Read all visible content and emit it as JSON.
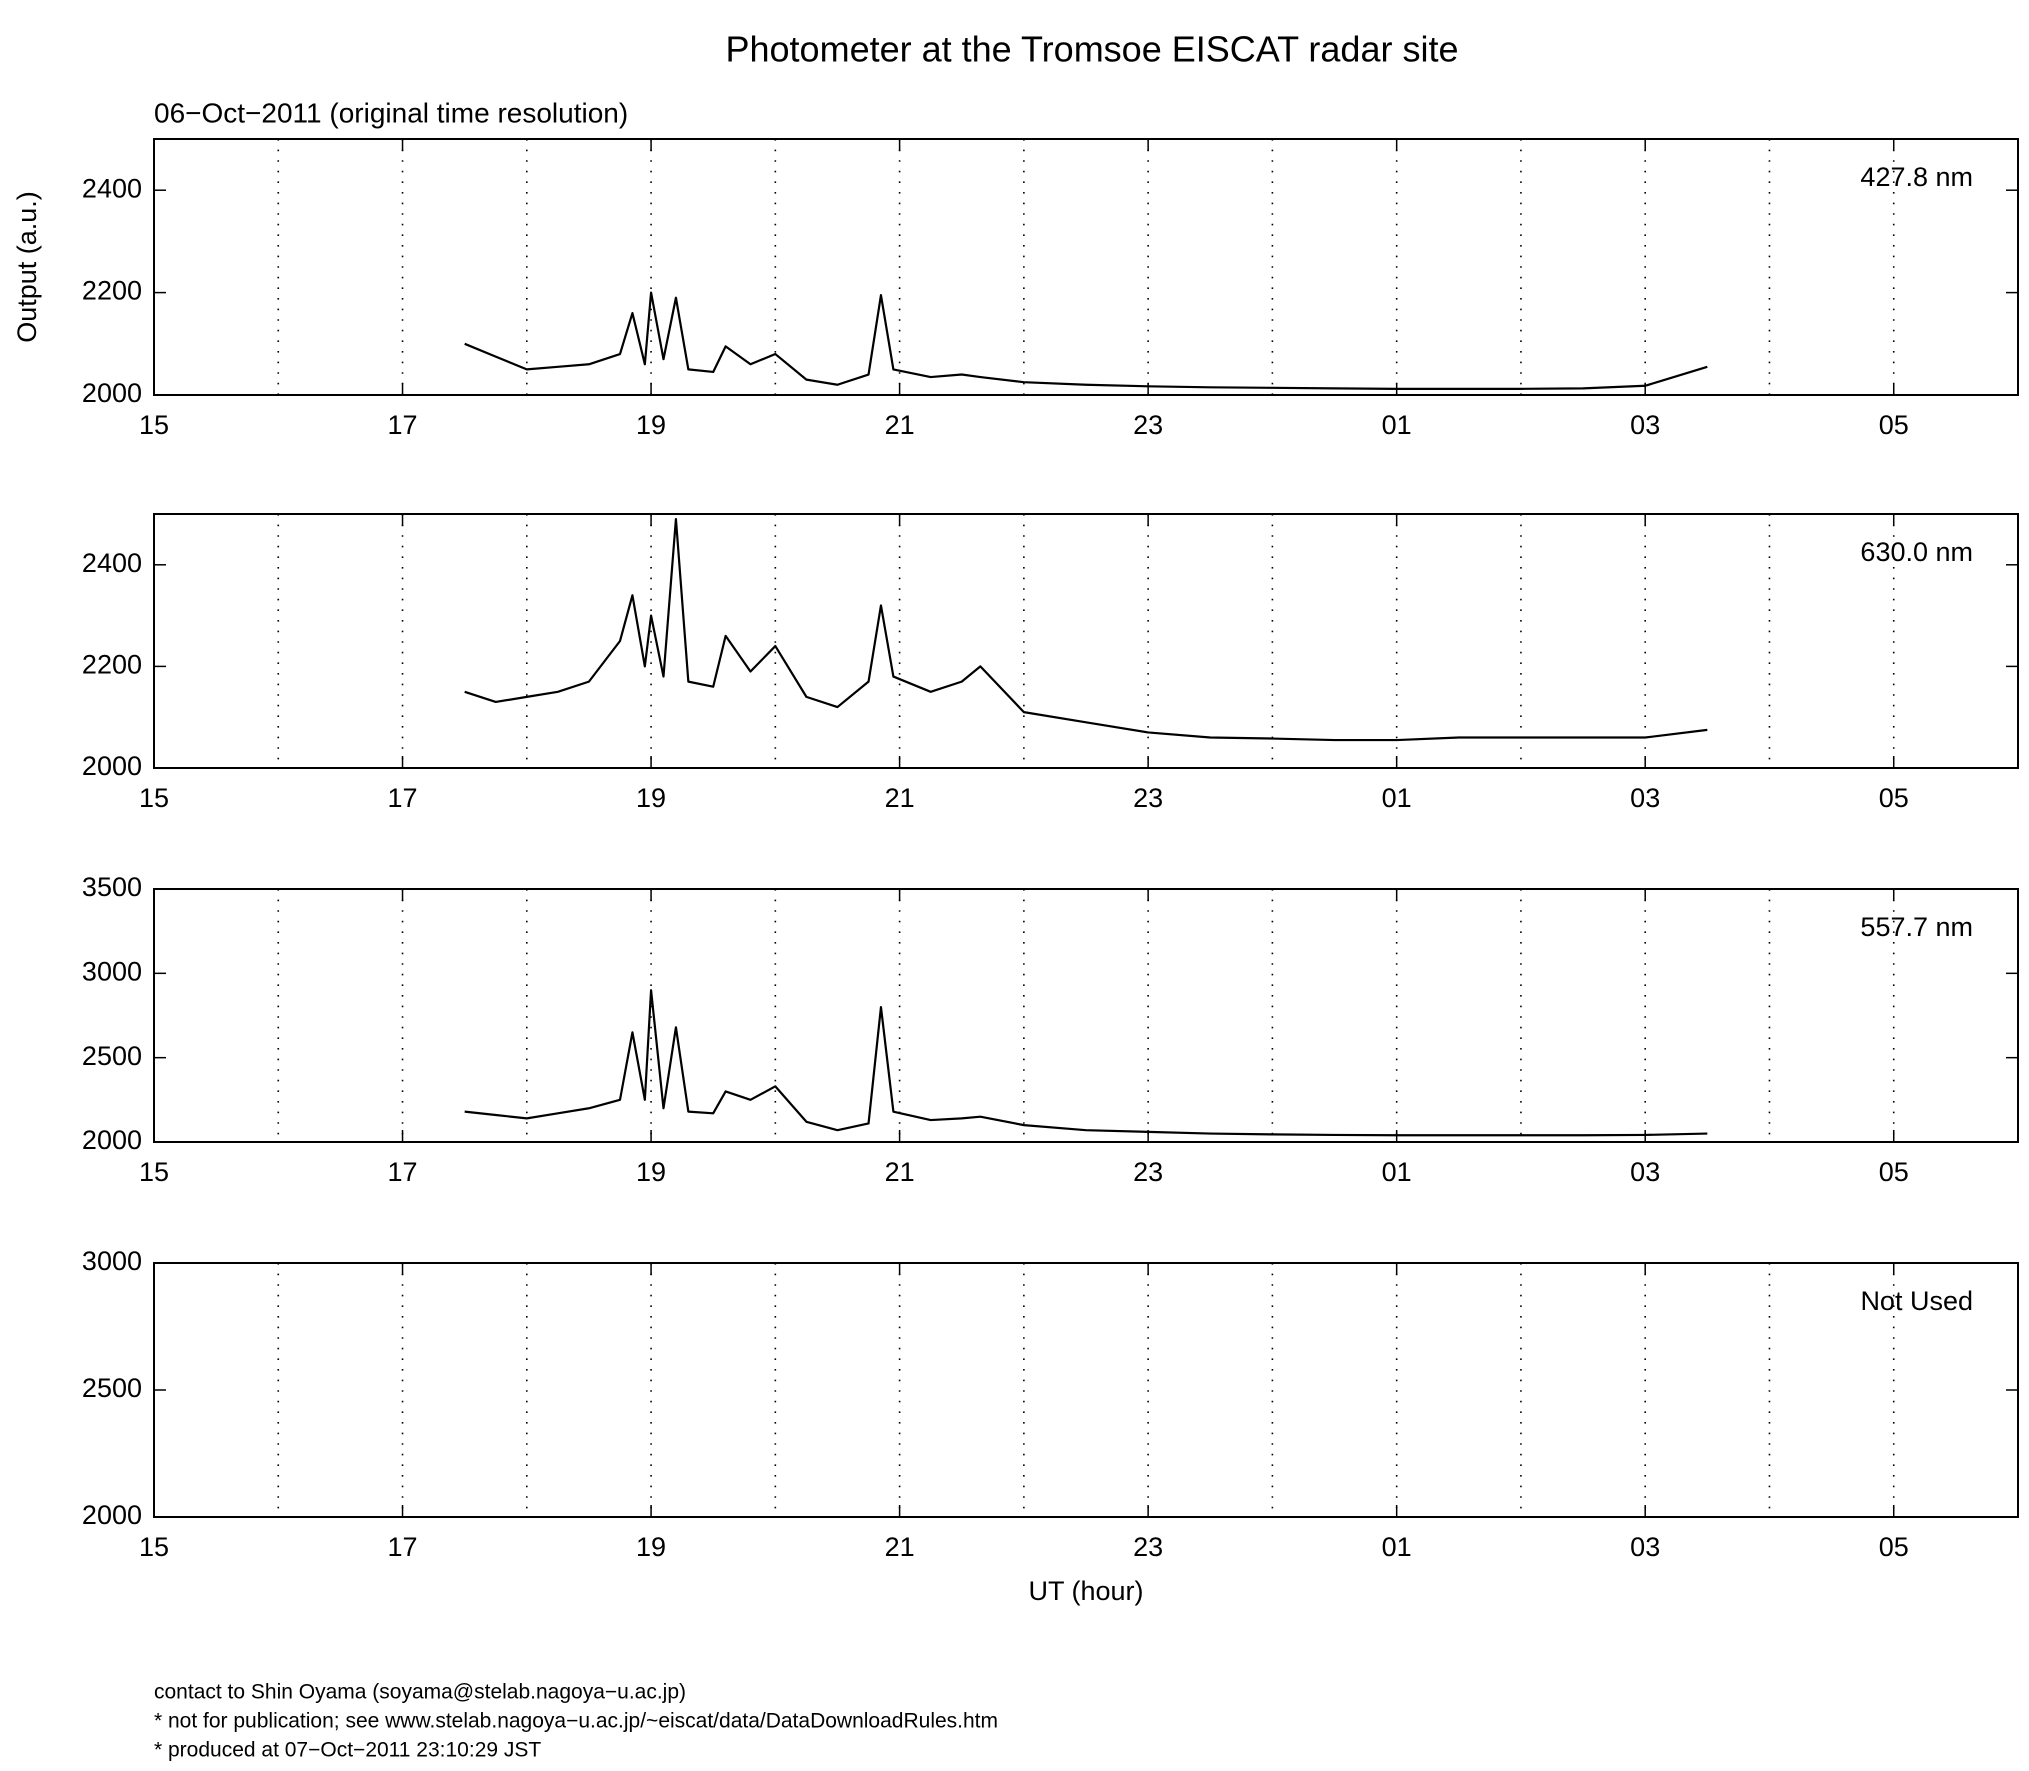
{
  "header": {
    "title": "Photometer at the Tromsoe EISCAT radar site",
    "subtitle": "06−Oct−2011 (original time resolution)"
  },
  "chart_data": [
    {
      "type": "line",
      "annotation": "427.8 nm",
      "ylabel": "Output (a.u.)",
      "x": [
        17.5,
        17.75,
        18,
        18.25,
        18.5,
        18.75,
        18.85,
        18.95,
        19.0,
        19.1,
        19.2,
        19.3,
        19.5,
        19.6,
        19.8,
        20.0,
        20.25,
        20.5,
        20.75,
        20.85,
        20.95,
        21.25,
        21.5,
        21.65,
        22,
        22.5,
        23,
        23.5,
        24,
        24.5,
        25,
        25.5,
        26,
        26.5,
        27,
        27.5
      ],
      "series": [
        {
          "color": "#000000",
          "values": [
            2100,
            2075,
            2050,
            2055,
            2060,
            2080,
            2160,
            2060,
            2200,
            2070,
            2190,
            2050,
            2045,
            2095,
            2060,
            2080,
            2030,
            2020,
            2040,
            2195,
            2050,
            2035,
            2040,
            2035,
            2025,
            2020,
            2017,
            2015,
            2014,
            2013,
            2012,
            2012,
            2012,
            2013,
            2018,
            2055
          ]
        }
      ],
      "xlim": [
        15,
        30
      ],
      "xticks": [
        15,
        17,
        19,
        21,
        23,
        {
          "value": 25,
          "label": "01"
        },
        {
          "value": 27,
          "label": "03"
        },
        {
          "value": 29,
          "label": "05"
        }
      ],
      "xgrid": [
        16,
        17,
        18,
        19,
        20,
        21,
        22,
        23,
        24,
        25,
        26,
        27,
        28,
        29
      ],
      "ylim": [
        2000,
        2500
      ],
      "yticks": [
        2000,
        2200,
        2400
      ]
    },
    {
      "type": "line",
      "annotation": "630.0 nm",
      "x": [
        17.5,
        17.75,
        18,
        18.25,
        18.5,
        18.75,
        18.85,
        18.95,
        19.0,
        19.1,
        19.2,
        19.3,
        19.5,
        19.6,
        19.8,
        20.0,
        20.25,
        20.5,
        20.75,
        20.85,
        20.95,
        21.25,
        21.5,
        21.65,
        22,
        22.5,
        23,
        23.5,
        24,
        24.5,
        25,
        25.5,
        26,
        26.5,
        27,
        27.5
      ],
      "series": [
        {
          "color": "#000000",
          "values": [
            2150,
            2130,
            2140,
            2150,
            2170,
            2250,
            2340,
            2200,
            2300,
            2180,
            2490,
            2170,
            2160,
            2260,
            2190,
            2240,
            2140,
            2120,
            2170,
            2320,
            2180,
            2150,
            2170,
            2200,
            2110,
            2090,
            2070,
            2060,
            2058,
            2055,
            2055,
            2060,
            2060,
            2060,
            2060,
            2075
          ]
        }
      ],
      "xlim": [
        15,
        30
      ],
      "xticks": [
        15,
        17,
        19,
        21,
        23,
        {
          "value": 25,
          "label": "01"
        },
        {
          "value": 27,
          "label": "03"
        },
        {
          "value": 29,
          "label": "05"
        }
      ],
      "xgrid": [
        16,
        17,
        18,
        19,
        20,
        21,
        22,
        23,
        24,
        25,
        26,
        27,
        28,
        29
      ],
      "ylim": [
        2000,
        2500
      ],
      "yticks": [
        2000,
        2200,
        2400
      ]
    },
    {
      "type": "line",
      "annotation": "557.7 nm",
      "x": [
        17.5,
        17.75,
        18,
        18.25,
        18.5,
        18.75,
        18.85,
        18.95,
        19.0,
        19.1,
        19.2,
        19.3,
        19.5,
        19.6,
        19.8,
        20.0,
        20.25,
        20.5,
        20.75,
        20.85,
        20.95,
        21.25,
        21.5,
        21.65,
        22,
        22.5,
        23,
        23.5,
        24,
        24.5,
        25,
        25.5,
        26,
        26.5,
        27,
        27.5
      ],
      "series": [
        {
          "color": "#000000",
          "values": [
            2180,
            2160,
            2140,
            2170,
            2200,
            2250,
            2650,
            2250,
            2900,
            2200,
            2680,
            2180,
            2170,
            2300,
            2250,
            2330,
            2120,
            2070,
            2110,
            2800,
            2180,
            2130,
            2140,
            2150,
            2100,
            2070,
            2060,
            2050,
            2045,
            2042,
            2040,
            2040,
            2040,
            2040,
            2042,
            2050
          ]
        }
      ],
      "xlim": [
        15,
        30
      ],
      "xticks": [
        15,
        17,
        19,
        21,
        23,
        {
          "value": 25,
          "label": "01"
        },
        {
          "value": 27,
          "label": "03"
        },
        {
          "value": 29,
          "label": "05"
        }
      ],
      "xgrid": [
        16,
        17,
        18,
        19,
        20,
        21,
        22,
        23,
        24,
        25,
        26,
        27,
        28,
        29
      ],
      "ylim": [
        2000,
        3500
      ],
      "yticks": [
        2000,
        2500,
        3000,
        3500
      ]
    },
    {
      "type": "line",
      "annotation": "Not Used",
      "xlabel": "UT (hour)",
      "x": [],
      "series": [],
      "xlim": [
        15,
        30
      ],
      "xticks": [
        15,
        17,
        19,
        21,
        23,
        {
          "value": 25,
          "label": "01"
        },
        {
          "value": 27,
          "label": "03"
        },
        {
          "value": 29,
          "label": "05"
        }
      ],
      "xgrid": [
        16,
        17,
        18,
        19,
        20,
        21,
        22,
        23,
        24,
        25,
        26,
        27,
        28,
        29
      ],
      "ylim": [
        2000,
        3000
      ],
      "yticks": [
        2000,
        2500,
        3000
      ]
    }
  ],
  "footer": [
    "contact to Shin Oyama (soyama@stelab.nagoya−u.ac.jp)",
    "* not for publication; see www.stelab.nagoya−u.ac.jp/~eiscat/data/DataDownloadRules.htm",
    "* produced at 07−Oct−2011 23:10:29 JST"
  ]
}
